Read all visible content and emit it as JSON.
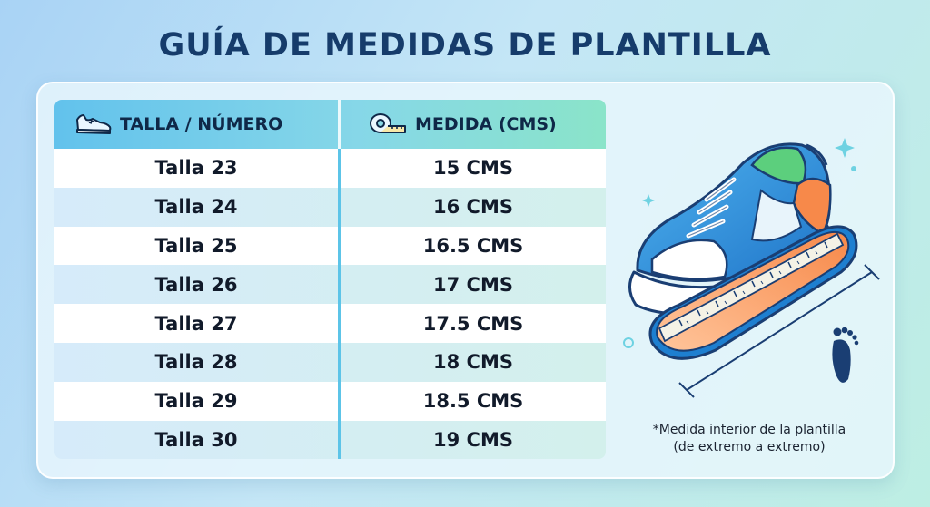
{
  "title": "GUÍA DE MEDIDAS DE PLANTILLA",
  "table": {
    "headers": {
      "size": "TALLA / NÚMERO",
      "size_icon": "shoe-icon",
      "measure": "MEDIDA (CMS)",
      "measure_icon": "measuring-tape-icon"
    },
    "rows": [
      {
        "size": "Talla 23",
        "measure": "15 CMS"
      },
      {
        "size": "Talla 24",
        "measure": "16 CMS"
      },
      {
        "size": "Talla 25",
        "measure": "16.5 CMS"
      },
      {
        "size": "Talla 26",
        "measure": "17 CMS"
      },
      {
        "size": "Talla 27",
        "measure": "17.5 CMS"
      },
      {
        "size": "Talla 28",
        "measure": "18 CMS"
      },
      {
        "size": "Talla 29",
        "measure": "18.5 CMS"
      },
      {
        "size": "Talla 30",
        "measure": "19 CMS"
      }
    ]
  },
  "note": {
    "line1": "*Medida interior de la plantilla",
    "line2": "(de extremo a extremo)"
  },
  "colors": {
    "title": "#163c6b",
    "header_gradient_start": "#62c2ec",
    "header_gradient_end": "#8ae4c9",
    "divider": "#5cc4e8"
  },
  "illustration_icons": [
    "sneaker-icon",
    "insole-icon",
    "footprint-icon",
    "sparkle-icon"
  ]
}
